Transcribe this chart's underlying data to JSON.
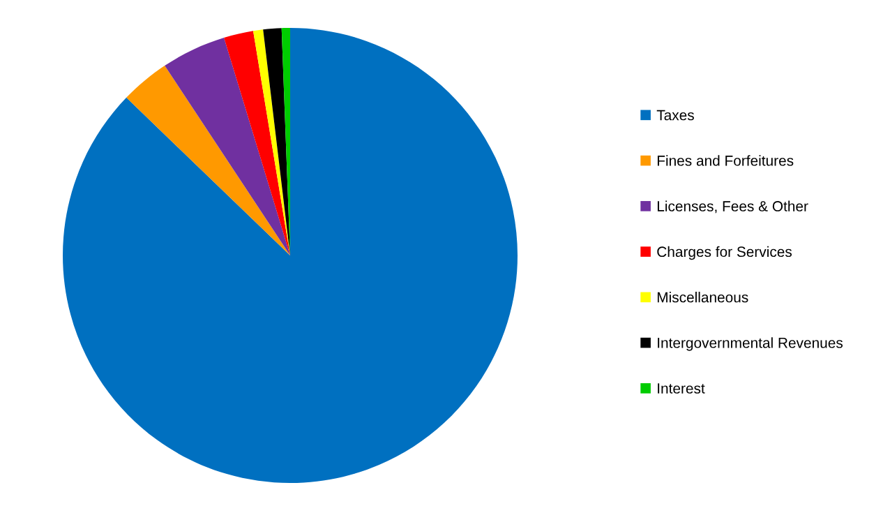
{
  "chart_data": {
    "type": "pie",
    "categories": [
      "Taxes",
      "Fines and Forfeitures",
      "Licenses, Fees & Other",
      "Charges for Services",
      "Miscellaneous",
      "Intergovernmental Revenues",
      "Interest"
    ],
    "values": [
      87.2,
      3.5,
      4.6,
      2.1,
      0.7,
      1.3,
      0.6
    ],
    "colors": [
      "#0070c0",
      "#ff9900",
      "#7030a0",
      "#ff0000",
      "#ffff00",
      "#000000",
      "#00cc00"
    ],
    "legend": "right"
  }
}
